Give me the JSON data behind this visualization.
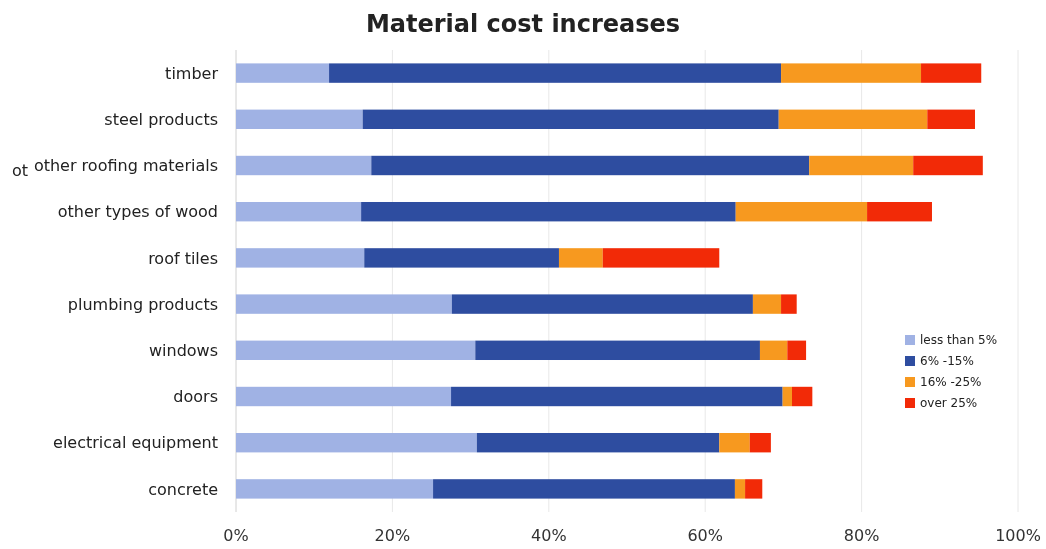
{
  "chart_data": {
    "type": "bar",
    "orientation": "horizontal",
    "stacked": true,
    "title": "Material cost increases",
    "categories": [
      "timber",
      "steel products",
      "other roofing materials",
      "other types of wood",
      "roof tiles",
      "plumbing products",
      "windows",
      "doors",
      "electrical equipment",
      "concrete"
    ],
    "series": [
      {
        "name": "less than 5%",
        "color": "#a0b2e4",
        "values": [
          11.9,
          16.2,
          17.3,
          16.0,
          16.4,
          27.6,
          30.6,
          27.5,
          30.8,
          25.2
        ]
      },
      {
        "name": "6% -15%",
        "color": "#2e4da0",
        "values": [
          57.8,
          53.2,
          56.0,
          47.9,
          24.9,
          38.5,
          36.4,
          42.4,
          31.0,
          38.6
        ]
      },
      {
        "name": "16% -25%",
        "color": "#f7991f",
        "values": [
          17.9,
          19.0,
          13.3,
          16.8,
          5.6,
          3.6,
          3.5,
          1.2,
          3.9,
          1.3
        ]
      },
      {
        "name": "over 25%",
        "color": "#f22a07",
        "values": [
          7.7,
          6.1,
          8.9,
          8.3,
          14.9,
          2.0,
          2.4,
          2.6,
          2.7,
          2.2
        ]
      }
    ],
    "xlim": [
      0,
      100
    ],
    "xticks": [
      {
        "value": 0,
        "label": "0%"
      },
      {
        "value": 20,
        "label": "20%"
      },
      {
        "value": 40,
        "label": "40%"
      },
      {
        "value": 60,
        "label": "60%"
      },
      {
        "value": 80,
        "label": "80%"
      },
      {
        "value": 100,
        "label": "100%"
      }
    ],
    "grid": "x",
    "legend": "right",
    "annotations": [
      "ot"
    ]
  }
}
